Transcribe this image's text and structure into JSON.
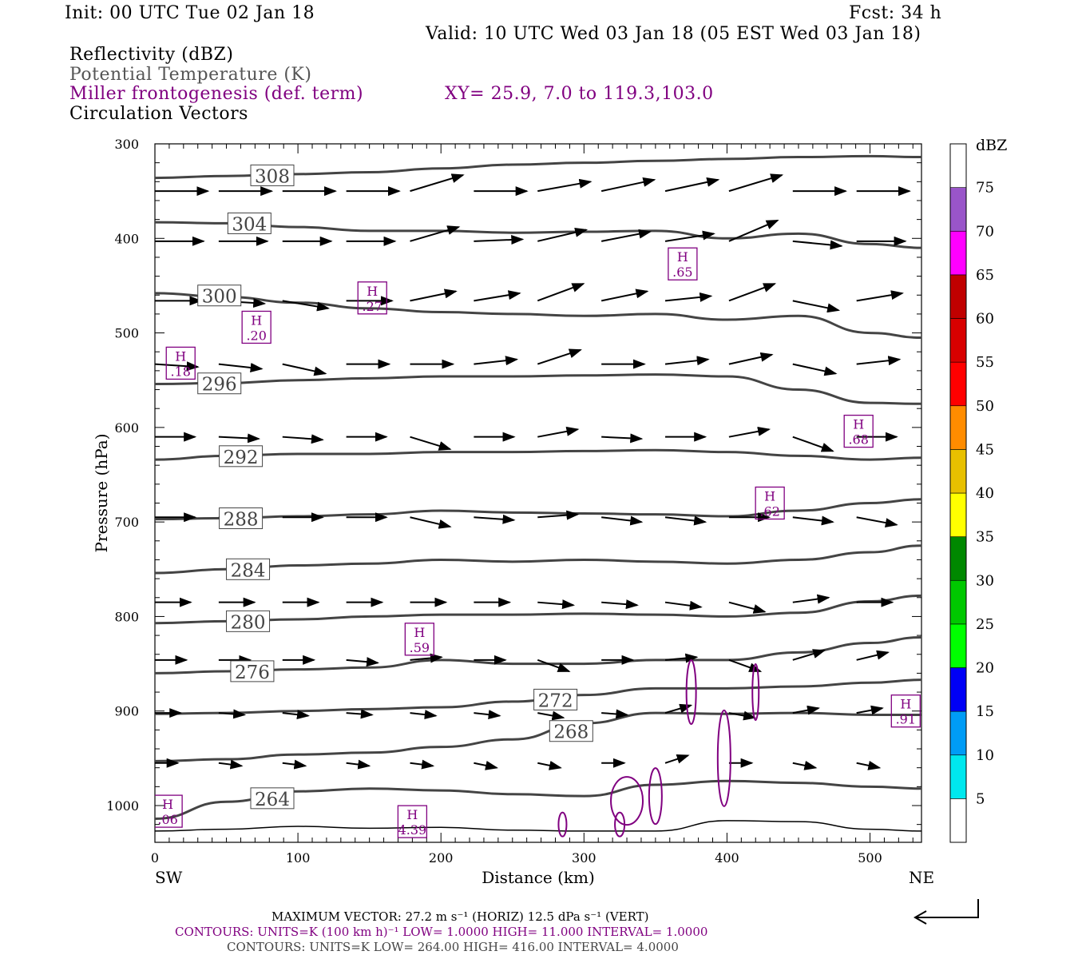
{
  "header": {
    "init": "Init: 00 UTC Tue 02 Jan 18",
    "fcst": "Fcst:   34 h",
    "valid": "Valid: 10 UTC Wed 03 Jan 18 (05 EST Wed 03 Jan 18)",
    "field1": "Reflectivity (dBZ)",
    "field2": "Potential Temperature (K)",
    "field3": "Miller frontogenesis (def. term)",
    "xy": "XY=  25.9,  7.0 to 119.3,103.0",
    "field4": "Circulation Vectors"
  },
  "footer": {
    "max_vector": "MAXIMUM VECTOR:  27.2 m s⁻¹ (HORIZ)          12.5 dPa s⁻¹ (VERT)",
    "contours_fronto": "CONTOURS:  UNITS=K (100 km h)⁻¹  LOW=  1.0000       HIGH=  11.000       INTERVAL=   1.0000",
    "contours_theta": "CONTOURS:  UNITS=K  LOW=  264.00       HIGH=  416.00       INTERVAL=   4.0000"
  },
  "chart_data": {
    "type": "cross-section",
    "xlabel": "Distance (km)",
    "ylabel": "Pressure (hPa)",
    "xlim": [
      0,
      536
    ],
    "ylim": [
      300,
      1039
    ],
    "x_ticks": [
      0,
      100,
      200,
      300,
      400,
      500
    ],
    "y_ticks": [
      300,
      400,
      500,
      600,
      700,
      800,
      900,
      1000
    ],
    "left_end": "SW",
    "right_end": "NE",
    "colorbar": {
      "title": "dBZ",
      "labels": [
        "5",
        "10",
        "15",
        "20",
        "25",
        "30",
        "35",
        "40",
        "45",
        "50",
        "55",
        "60",
        "65",
        "70",
        "75"
      ],
      "colors": [
        "#ffffff",
        "#00e8ee",
        "#009cf6",
        "#0000f6",
        "#00ff00",
        "#00c800",
        "#008800",
        "#ffff00",
        "#e8c000",
        "#ff8c00",
        "#ff0000",
        "#d80000",
        "#c00000",
        "#ff00ff",
        "#9955c9",
        "#ffffff"
      ]
    },
    "theta_x": [
      0,
      50,
      100,
      150,
      200,
      250,
      300,
      350,
      400,
      450,
      500,
      536
    ],
    "theta_contours": [
      {
        "value": "308",
        "p": [
          336,
          334,
          332,
          330,
          326,
          322,
          320,
          318,
          316,
          314,
          313,
          314
        ],
        "label_x": 67
      },
      {
        "value": "304",
        "p": [
          383,
          384,
          388,
          392,
          392,
          394,
          393,
          392,
          400,
          395,
          406,
          410
        ],
        "label_x": 51
      },
      {
        "value": "300",
        "p": [
          458,
          462,
          468,
          474,
          478,
          480,
          482,
          480,
          486,
          482,
          500,
          505
        ],
        "label_x": 30
      },
      {
        "value": "296",
        "p": [
          554,
          553,
          550,
          548,
          546,
          546,
          545,
          544,
          546,
          560,
          574,
          575
        ],
        "label_x": 30
      },
      {
        "value": "292",
        "p": [
          634,
          630,
          628,
          628,
          626,
          626,
          625,
          624,
          626,
          630,
          634,
          632
        ],
        "label_x": 45
      },
      {
        "value": "288",
        "p": [
          697,
          696,
          694,
          692,
          688,
          690,
          691,
          692,
          694,
          688,
          680,
          676
        ],
        "label_x": 45
      },
      {
        "value": "284",
        "p": [
          754,
          750,
          746,
          744,
          740,
          742,
          740,
          742,
          744,
          740,
          732,
          725
        ],
        "label_x": 50
      },
      {
        "value": "280",
        "p": [
          807,
          805,
          803,
          800,
          798,
          798,
          797,
          798,
          800,
          796,
          784,
          778
        ],
        "label_x": 50
      },
      {
        "value": "276",
        "p": [
          860,
          858,
          856,
          854,
          846,
          850,
          850,
          846,
          846,
          838,
          828,
          822
        ],
        "label_x": 53
      },
      {
        "value": "272",
        "p": [
          903,
          902,
          900,
          898,
          896,
          890,
          883,
          876,
          876,
          874,
          870,
          867
        ],
        "label_x": 265
      },
      {
        "value": "268",
        "p": [
          953,
          951,
          946,
          944,
          938,
          930,
          913,
          902,
          903,
          902,
          904,
          904
        ],
        "label_x": 276
      },
      {
        "value": "264",
        "p": [
          1014,
          996,
          985,
          982,
          984,
          988,
          990,
          978,
          974,
          976,
          980,
          982
        ],
        "label_x": 67
      }
    ],
    "ground_p": [
      1027,
      1025,
      1022,
      1024,
      1023,
      1026,
      1027,
      1027,
      1016,
      1017,
      1025,
      1027
    ],
    "vectors": {
      "x_start": 0,
      "x_step": 44.6,
      "rows": [
        {
          "p": 350,
          "len": 37,
          "dp": [
            0,
            0,
            0,
            0,
            -17,
            0,
            -10,
            -12,
            -12,
            -17,
            0,
            0
          ]
        },
        {
          "p": 403,
          "len": 34,
          "dp": [
            0,
            0,
            0,
            0,
            -15,
            -2,
            -12,
            -10,
            -8,
            -22,
            5,
            0
          ]
        },
        {
          "p": 466,
          "len": 32,
          "dp": [
            0,
            3,
            8,
            0,
            -10,
            -8,
            -18,
            -10,
            -5,
            -18,
            10,
            -8
          ]
        },
        {
          "p": 533,
          "len": 30,
          "dp": [
            3,
            5,
            10,
            0,
            0,
            -5,
            -15,
            0,
            -5,
            -10,
            10,
            -5
          ]
        },
        {
          "p": 610,
          "len": 28,
          "dp": [
            0,
            2,
            3,
            0,
            13,
            0,
            -8,
            2,
            0,
            -8,
            15,
            0
          ]
        },
        {
          "p": 695,
          "len": 28,
          "dp": [
            0,
            0,
            0,
            0,
            10,
            3,
            -3,
            5,
            5,
            0,
            5,
            8
          ]
        },
        {
          "p": 785,
          "len": 25,
          "dp": [
            0,
            0,
            0,
            0,
            0,
            0,
            3,
            3,
            5,
            10,
            -5,
            0
          ]
        },
        {
          "p": 846,
          "len": 22,
          "dp": [
            0,
            0,
            0,
            3,
            -3,
            0,
            12,
            0,
            -3,
            12,
            -10,
            -8
          ]
        },
        {
          "p": 902,
          "len": 18,
          "dp": [
            0,
            2,
            3,
            2,
            3,
            3,
            5,
            2,
            -8,
            5,
            -5,
            -5
          ]
        },
        {
          "p": 955,
          "len": 16,
          "dp": [
            0,
            3,
            3,
            3,
            3,
            5,
            5,
            0,
            -8,
            0,
            5,
            5
          ]
        }
      ]
    },
    "frontogenesis_maxima": [
      {
        "label": "H",
        "value": ".27",
        "x": 152,
        "p": 463
      },
      {
        "label": "H",
        "value": ".20",
        "x": 71,
        "p": 494
      },
      {
        "label": "H",
        "value": ".18",
        "x": 18,
        "p": 532
      },
      {
        "label": "H",
        "value": ".65",
        "x": 369,
        "p": 427
      },
      {
        "label": "H",
        "value": ".68",
        "x": 492,
        "p": 604
      },
      {
        "label": "H",
        "value": ".62",
        "x": 430,
        "p": 680
      },
      {
        "label": "H",
        "value": ".59",
        "x": 185,
        "p": 824
      },
      {
        "label": "H",
        "value": ".91",
        "x": 525,
        "p": 900
      },
      {
        "label": "H",
        "value": ".06",
        "x": 9,
        "p": 1006
      },
      {
        "label": "H",
        "value": "4.39",
        "x": 180,
        "p": 1017
      }
    ]
  }
}
